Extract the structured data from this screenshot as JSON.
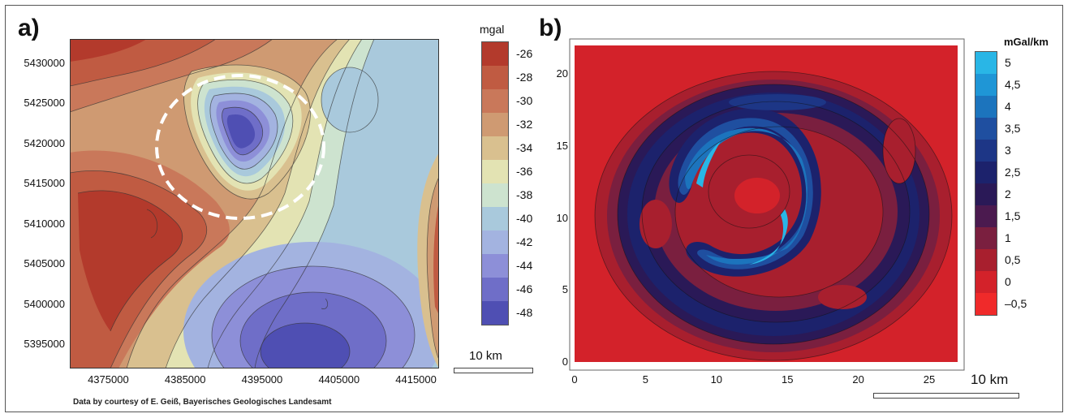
{
  "panel_a": {
    "letter": "a)",
    "credit": "Data by courtesy of E. Geiß, Bayerisches Geologisches Landesamt",
    "colorbar_unit": "mgal",
    "colorbar_labels": [
      "-26",
      "-28",
      "-30",
      "-32",
      "-34",
      "-36",
      "-38",
      "-40",
      "-42",
      "-44",
      "-46",
      "-48"
    ],
    "colorbar_colors": [
      "#b33a2c",
      "#c05b42",
      "#c9785a",
      "#cf9a72",
      "#d9c08f",
      "#e3e3b3",
      "#cde3cf",
      "#a9c9dc",
      "#a3b3e0",
      "#8d8fd8",
      "#6f6ec8",
      "#4f4fb3"
    ],
    "scale_label": "10 km"
  },
  "panel_b": {
    "letter": "b)",
    "colorbar_unit": "mGal/km",
    "colorbar_labels": [
      "5",
      "4,5",
      "4",
      "3,5",
      "3",
      "2,5",
      "2",
      "1,5",
      "1",
      "0,5",
      "0",
      "–0,5"
    ],
    "colorbar_colors": [
      "#29b6e6",
      "#1f96d6",
      "#1c74bd",
      "#1f4fa0",
      "#1d3686",
      "#1c226c",
      "#2a1957",
      "#4b1a4f",
      "#7a1f3f",
      "#a81f2e",
      "#d3222a",
      "#f02a2a"
    ],
    "scale_label": "10 km"
  },
  "chart_data": [
    {
      "type": "heatmap",
      "title": "",
      "xlabel": "",
      "ylabel": "",
      "unit": "mgal",
      "x_ticks": [
        "4375000",
        "4385000",
        "4395000",
        "4405000",
        "4415000"
      ],
      "y_ticks": [
        "5430000",
        "5425000",
        "5420000",
        "5415000",
        "5410000",
        "5405000",
        "5400000",
        "5395000"
      ],
      "xlim": [
        4370000,
        4418000
      ],
      "ylim": [
        5392000,
        5433000
      ],
      "colorbar_range": [
        -48,
        -26
      ],
      "features": [
        {
          "kind": "low",
          "x": 4392000,
          "y": 5421000,
          "value": -47
        },
        {
          "kind": "low",
          "x": 4393000,
          "y": 5397000,
          "value": -45
        },
        {
          "kind": "high",
          "x": 4378000,
          "y": 5408000,
          "value": -28
        },
        {
          "kind": "high",
          "x": 4372000,
          "y": 5430000,
          "value": -29
        },
        {
          "kind": "high",
          "x": 4416000,
          "y": 5405000,
          "value": -30
        }
      ],
      "annotation": "dashed white circle around low near 4393000 / 5418000"
    },
    {
      "type": "heatmap",
      "title": "",
      "xlabel": "",
      "ylabel": "",
      "unit": "mGal/km",
      "x_ticks": [
        "0",
        "5",
        "10",
        "15",
        "20",
        "25"
      ],
      "y_ticks": [
        "0",
        "5",
        "10",
        "15",
        "20"
      ],
      "xlim": [
        0,
        27
      ],
      "ylim": [
        0,
        22
      ],
      "colorbar_range": [
        -0.5,
        5
      ],
      "features": [
        {
          "kind": "ring",
          "cx": 13.4,
          "cy": 11,
          "rx": 10.5,
          "ry": 9.5,
          "value": 2
        },
        {
          "kind": "inner-arc-high",
          "cx": 12.5,
          "cy": 10.5,
          "value": 4.5
        }
      ]
    }
  ]
}
